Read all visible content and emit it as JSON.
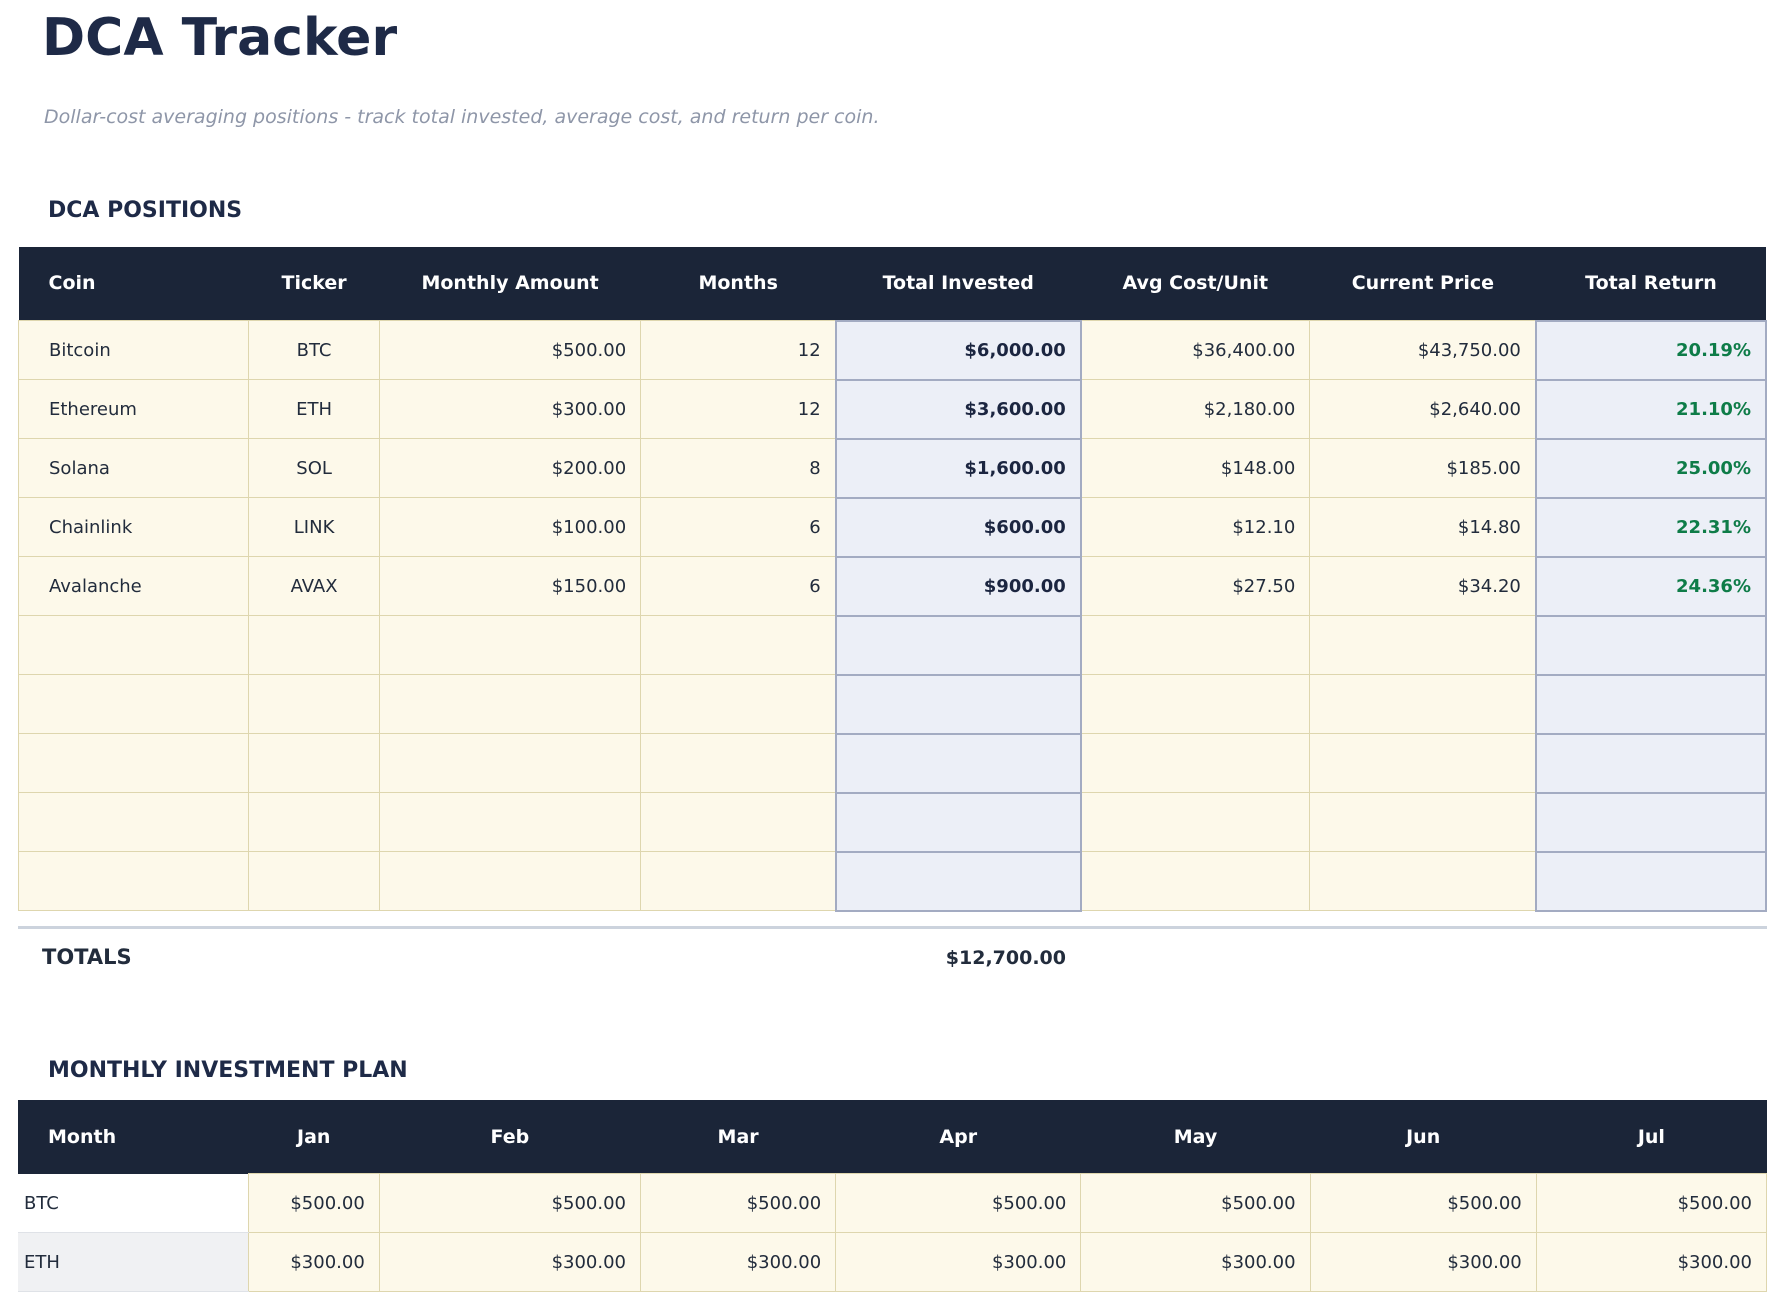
{
  "page": {
    "title": "DCA Tracker",
    "subtitle": "Dollar-cost averaging positions - track total invested, average cost, and return per coin."
  },
  "colors": {
    "header_bg": "#1b2538",
    "heading_text": "#1e2a47",
    "cell_bg_cream": "#fdf9ea",
    "cell_bg_blue": "#eceff7",
    "border_tan": "#ded6ae",
    "border_blue": "#a3abc2",
    "return_green": "#0e7c48"
  },
  "positions_section": {
    "heading": "DCA POSITIONS",
    "columns": [
      "Coin",
      "Ticker",
      "Monthly Amount",
      "Months",
      "Total Invested",
      "Avg Cost/Unit",
      "Current Price",
      "Total Return"
    ],
    "rows": [
      {
        "cells": [
          "Bitcoin",
          "BTC",
          "$500.00",
          "12",
          "$6,000.00",
          "$36,400.00",
          "$43,750.00",
          "20.19%"
        ]
      },
      {
        "cells": [
          "Ethereum",
          "ETH",
          "$300.00",
          "12",
          "$3,600.00",
          "$2,180.00",
          "$2,640.00",
          "21.10%"
        ]
      },
      {
        "cells": [
          "Solana",
          "SOL",
          "$200.00",
          "8",
          "$1,600.00",
          "$148.00",
          "$185.00",
          "25.00%"
        ]
      },
      {
        "cells": [
          "Chainlink",
          "LINK",
          "$100.00",
          "6",
          "$600.00",
          "$12.10",
          "$14.80",
          "22.31%"
        ]
      },
      {
        "cells": [
          "Avalanche",
          "AVAX",
          "$150.00",
          "6",
          "$900.00",
          "$27.50",
          "$34.20",
          "24.36%"
        ]
      }
    ],
    "empty_row_count": 5,
    "totals": {
      "label": "TOTALS",
      "total_invested": "$12,700.00"
    }
  },
  "plan_section": {
    "heading": "MONTHLY INVESTMENT PLAN",
    "columns": [
      "Month",
      "Jan",
      "Feb",
      "Mar",
      "Apr",
      "May",
      "Jun",
      "Jul"
    ],
    "rows": [
      {
        "label": "BTC",
        "cells": [
          "$500.00",
          "$500.00",
          "$500.00",
          "$500.00",
          "$500.00",
          "$500.00",
          "$500.00"
        ]
      },
      {
        "label": "ETH",
        "cells": [
          "$300.00",
          "$300.00",
          "$300.00",
          "$300.00",
          "$300.00",
          "$300.00",
          "$300.00"
        ]
      }
    ]
  }
}
